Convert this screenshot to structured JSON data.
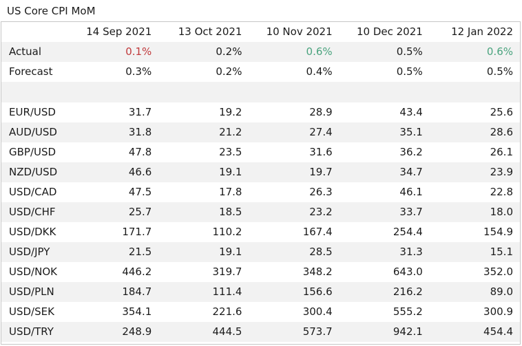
{
  "title": "US Core CPI MoM",
  "columns": [
    "14 Sep 2021",
    "13 Oct 2021",
    "10 Nov 2021",
    "10 Dec 2021",
    "12 Jan 2022"
  ],
  "colors": {
    "red": "#c0393b",
    "green": "#4aa37e",
    "stripe": "#f2f2f2",
    "border": "#c6c6c6"
  },
  "actual": {
    "label": "Actual",
    "values": [
      "0.1%",
      "0.2%",
      "0.6%",
      "0.5%",
      "0.6%"
    ],
    "tones": [
      "red",
      "",
      "green",
      "",
      "green"
    ]
  },
  "forecast": {
    "label": "Forecast",
    "values": [
      "0.3%",
      "0.2%",
      "0.4%",
      "0.5%",
      "0.5%"
    ]
  },
  "pairs": [
    {
      "label": "EUR/USD",
      "values": [
        "31.7",
        "19.2",
        "28.9",
        "43.4",
        "25.6"
      ]
    },
    {
      "label": "AUD/USD",
      "values": [
        "31.8",
        "21.2",
        "27.4",
        "35.1",
        "28.6"
      ]
    },
    {
      "label": "GBP/USD",
      "values": [
        "47.8",
        "23.5",
        "31.6",
        "36.2",
        "26.1"
      ]
    },
    {
      "label": "NZD/USD",
      "values": [
        "46.6",
        "19.1",
        "19.7",
        "34.7",
        "23.9"
      ]
    },
    {
      "label": "USD/CAD",
      "values": [
        "47.5",
        "17.8",
        "26.3",
        "46.1",
        "22.8"
      ]
    },
    {
      "label": "USD/CHF",
      "values": [
        "25.7",
        "18.5",
        "23.2",
        "33.7",
        "18.0"
      ]
    },
    {
      "label": "USD/DKK",
      "values": [
        "171.7",
        "110.2",
        "167.4",
        "254.4",
        "154.9"
      ]
    },
    {
      "label": "USD/JPY",
      "values": [
        "21.5",
        "19.1",
        "28.5",
        "31.3",
        "15.1"
      ]
    },
    {
      "label": "USD/NOK",
      "values": [
        "446.2",
        "319.7",
        "348.2",
        "643.0",
        "352.0"
      ]
    },
    {
      "label": "USD/PLN",
      "values": [
        "184.7",
        "111.4",
        "156.6",
        "216.2",
        "89.0"
      ]
    },
    {
      "label": "USD/SEK",
      "values": [
        "354.1",
        "221.6",
        "300.4",
        "555.2",
        "300.9"
      ]
    },
    {
      "label": "USD/TRY",
      "values": [
        "248.9",
        "444.5",
        "573.7",
        "942.1",
        "454.4"
      ]
    }
  ]
}
